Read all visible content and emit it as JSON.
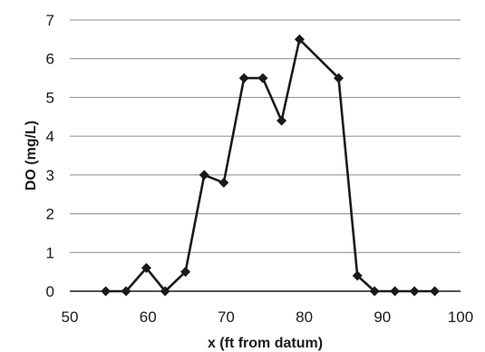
{
  "chart_data": {
    "type": "line",
    "xlabel": "x (ft from datum)",
    "ylabel": "DO (mg/L)",
    "xlim": [
      50,
      100
    ],
    "ylim": [
      0,
      7
    ],
    "xticks": [
      50,
      60,
      70,
      80,
      90,
      100
    ],
    "yticks": [
      0,
      1,
      2,
      3,
      4,
      5,
      6,
      7
    ],
    "grid": "horizontal",
    "marker": "diamond",
    "colors": {
      "line": "#1a1a1a",
      "grid": "#8a8a8a"
    },
    "series": [
      {
        "x": [
          54.6,
          57.2,
          59.8,
          62.2,
          64.8,
          67.2,
          69.7,
          72.3,
          74.7,
          77.1,
          79.4,
          84.4,
          86.8,
          89.0,
          91.6,
          94.1,
          96.7
        ],
        "y": [
          0,
          0,
          0.6,
          0,
          0.5,
          3.0,
          2.8,
          5.5,
          5.5,
          4.4,
          6.5,
          5.5,
          0.4,
          0,
          0,
          0,
          0
        ]
      }
    ]
  }
}
